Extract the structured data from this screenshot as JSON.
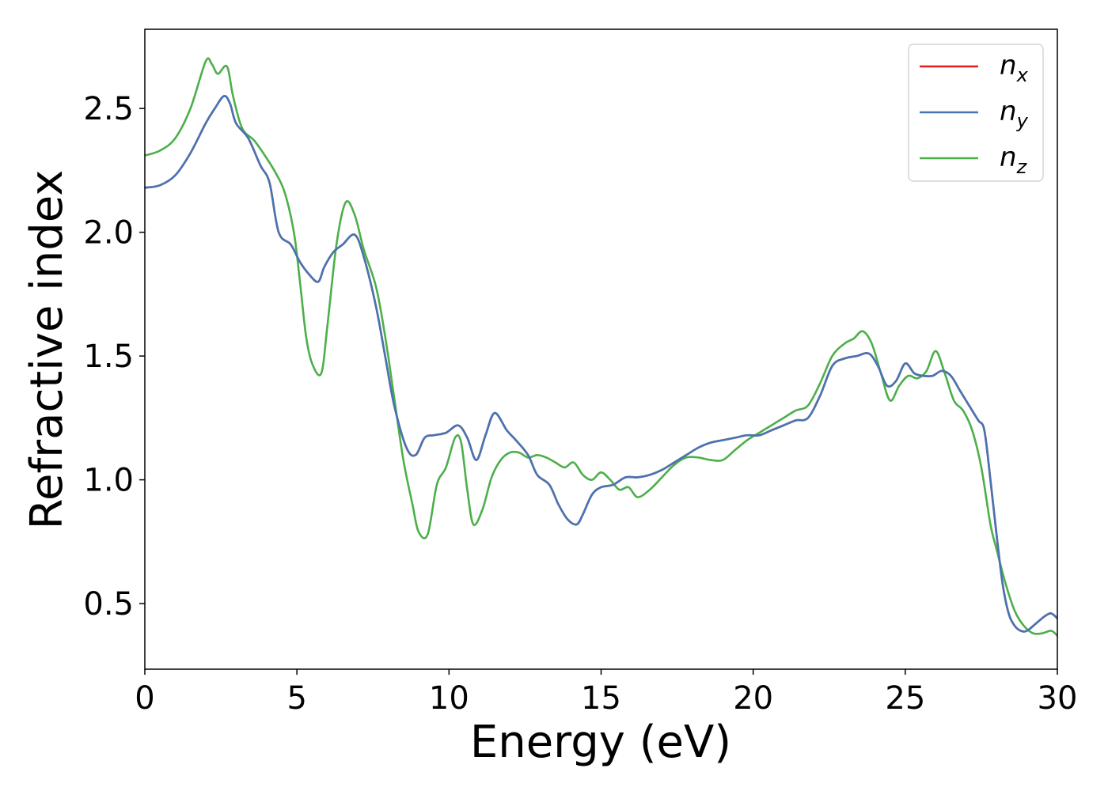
{
  "chart_data": {
    "type": "line",
    "title": "",
    "xlabel": "Energy (eV)",
    "ylabel": "Refractive index",
    "xlim": [
      0,
      30
    ],
    "ylim": [
      0.235,
      2.82
    ],
    "xticks": [
      0,
      5,
      10,
      15,
      20,
      25,
      30
    ],
    "xtick_labels": [
      "0",
      "5",
      "10",
      "15",
      "20",
      "25",
      "30"
    ],
    "yticks": [
      0.5,
      1.0,
      1.5,
      2.0,
      2.5
    ],
    "ytick_labels": [
      "0.5",
      "1.0",
      "1.5",
      "2.0",
      "2.5"
    ],
    "grid": false,
    "legend_position": "top-right",
    "series": [
      {
        "name": "n_x",
        "label_base": "n",
        "label_sub": "x",
        "color": "#e41a1c",
        "x": [
          0,
          0.5,
          1,
          1.5,
          2,
          2.3,
          2.6,
          2.8,
          3,
          3.4,
          3.8,
          4.1,
          4.4,
          4.8,
          5.1,
          5.4,
          5.7,
          5.9,
          6.2,
          6.5,
          6.9,
          7.2,
          7.6,
          7.9,
          8.2,
          8.6,
          8.9,
          9.2,
          9.5,
          9.9,
          10.3,
          10.6,
          10.9,
          11.2,
          11.5,
          11.9,
          12.2,
          12.6,
          12.9,
          13.3,
          13.6,
          13.9,
          14.2,
          14.4,
          14.7,
          15,
          15.4,
          15.8,
          16.2,
          16.6,
          17,
          17.4,
          17.8,
          18.2,
          18.6,
          19,
          19.4,
          19.8,
          20.2,
          20.6,
          21,
          21.4,
          21.8,
          22.2,
          22.6,
          23,
          23.4,
          23.8,
          24.1,
          24.4,
          24.7,
          25,
          25.3,
          25.6,
          25.9,
          26.2,
          26.5,
          26.8,
          27.1,
          27.4,
          27.6,
          27.8,
          28,
          28.2,
          28.4,
          28.6,
          28.8,
          29,
          29.3,
          29.6,
          29.8,
          30
        ],
        "y": [
          2.18,
          2.19,
          2.23,
          2.32,
          2.44,
          2.5,
          2.55,
          2.52,
          2.44,
          2.38,
          2.27,
          2.2,
          2.0,
          1.95,
          1.88,
          1.83,
          1.8,
          1.86,
          1.92,
          1.95,
          1.99,
          1.9,
          1.7,
          1.5,
          1.3,
          1.13,
          1.1,
          1.17,
          1.18,
          1.19,
          1.22,
          1.17,
          1.08,
          1.18,
          1.27,
          1.2,
          1.16,
          1.1,
          1.02,
          0.98,
          0.9,
          0.84,
          0.82,
          0.86,
          0.94,
          0.97,
          0.98,
          1.01,
          1.01,
          1.02,
          1.04,
          1.07,
          1.1,
          1.13,
          1.15,
          1.16,
          1.17,
          1.18,
          1.18,
          1.2,
          1.22,
          1.24,
          1.25,
          1.34,
          1.46,
          1.49,
          1.5,
          1.51,
          1.46,
          1.38,
          1.4,
          1.47,
          1.43,
          1.42,
          1.42,
          1.44,
          1.42,
          1.36,
          1.3,
          1.24,
          1.2,
          1.0,
          0.78,
          0.58,
          0.46,
          0.41,
          0.39,
          0.39,
          0.42,
          0.45,
          0.46,
          0.44
        ]
      },
      {
        "name": "n_y",
        "label_base": "n",
        "label_sub": "y",
        "color": "#4575b4",
        "x": [
          0,
          0.5,
          1,
          1.5,
          2,
          2.3,
          2.6,
          2.8,
          3,
          3.4,
          3.8,
          4.1,
          4.4,
          4.8,
          5.1,
          5.4,
          5.7,
          5.9,
          6.2,
          6.5,
          6.9,
          7.2,
          7.6,
          7.9,
          8.2,
          8.6,
          8.9,
          9.2,
          9.5,
          9.9,
          10.3,
          10.6,
          10.9,
          11.2,
          11.5,
          11.9,
          12.2,
          12.6,
          12.9,
          13.3,
          13.6,
          13.9,
          14.2,
          14.4,
          14.7,
          15,
          15.4,
          15.8,
          16.2,
          16.6,
          17,
          17.4,
          17.8,
          18.2,
          18.6,
          19,
          19.4,
          19.8,
          20.2,
          20.6,
          21,
          21.4,
          21.8,
          22.2,
          22.6,
          23,
          23.4,
          23.8,
          24.1,
          24.4,
          24.7,
          25,
          25.3,
          25.6,
          25.9,
          26.2,
          26.5,
          26.8,
          27.1,
          27.4,
          27.6,
          27.8,
          28,
          28.2,
          28.4,
          28.6,
          28.8,
          29,
          29.3,
          29.6,
          29.8,
          30
        ],
        "y": [
          2.18,
          2.19,
          2.23,
          2.32,
          2.44,
          2.5,
          2.55,
          2.52,
          2.44,
          2.38,
          2.27,
          2.2,
          2.0,
          1.95,
          1.88,
          1.83,
          1.8,
          1.86,
          1.92,
          1.95,
          1.99,
          1.9,
          1.7,
          1.5,
          1.3,
          1.13,
          1.1,
          1.17,
          1.18,
          1.19,
          1.22,
          1.17,
          1.08,
          1.18,
          1.27,
          1.2,
          1.16,
          1.1,
          1.02,
          0.98,
          0.9,
          0.84,
          0.82,
          0.86,
          0.94,
          0.97,
          0.98,
          1.01,
          1.01,
          1.02,
          1.04,
          1.07,
          1.1,
          1.13,
          1.15,
          1.16,
          1.17,
          1.18,
          1.18,
          1.2,
          1.22,
          1.24,
          1.25,
          1.34,
          1.46,
          1.49,
          1.5,
          1.51,
          1.46,
          1.38,
          1.4,
          1.47,
          1.43,
          1.42,
          1.42,
          1.44,
          1.42,
          1.36,
          1.3,
          1.24,
          1.2,
          1.0,
          0.78,
          0.58,
          0.46,
          0.41,
          0.39,
          0.39,
          0.42,
          0.45,
          0.46,
          0.44
        ]
      },
      {
        "name": "n_z",
        "label_base": "n",
        "label_sub": "z",
        "color": "#4daf4a",
        "x": [
          0,
          0.5,
          1,
          1.5,
          2,
          2.2,
          2.4,
          2.7,
          2.9,
          3.2,
          3.6,
          4,
          4.3,
          4.6,
          4.9,
          5.1,
          5.3,
          5.5,
          5.8,
          6,
          6.3,
          6.6,
          6.9,
          7.2,
          7.6,
          7.9,
          8.2,
          8.5,
          8.8,
          9,
          9.3,
          9.6,
          9.9,
          10.2,
          10.4,
          10.6,
          10.8,
          11.1,
          11.4,
          11.7,
          12,
          12.3,
          12.6,
          12.9,
          13.2,
          13.5,
          13.8,
          14.1,
          14.4,
          14.7,
          15,
          15.3,
          15.6,
          15.9,
          16.2,
          16.6,
          17,
          17.4,
          17.8,
          18.2,
          18.6,
          19,
          19.4,
          19.8,
          20.2,
          20.6,
          21,
          21.4,
          21.8,
          22.2,
          22.6,
          23,
          23.3,
          23.6,
          23.9,
          24.2,
          24.5,
          24.8,
          25.1,
          25.4,
          25.7,
          26,
          26.3,
          26.6,
          26.9,
          27.2,
          27.5,
          27.8,
          28,
          28.3,
          28.6,
          28.9,
          29.2,
          29.5,
          29.8,
          30
        ],
        "y": [
          2.31,
          2.33,
          2.38,
          2.5,
          2.69,
          2.68,
          2.64,
          2.67,
          2.55,
          2.42,
          2.37,
          2.3,
          2.24,
          2.16,
          2.0,
          1.8,
          1.58,
          1.47,
          1.43,
          1.62,
          1.95,
          2.12,
          2.07,
          1.93,
          1.78,
          1.58,
          1.33,
          1.08,
          0.9,
          0.79,
          0.78,
          0.98,
          1.05,
          1.17,
          1.15,
          0.96,
          0.82,
          0.88,
          1.01,
          1.08,
          1.11,
          1.11,
          1.09,
          1.1,
          1.09,
          1.07,
          1.05,
          1.07,
          1.02,
          1.0,
          1.03,
          1.0,
          0.96,
          0.97,
          0.93,
          0.96,
          1.01,
          1.06,
          1.09,
          1.09,
          1.08,
          1.08,
          1.12,
          1.16,
          1.19,
          1.22,
          1.25,
          1.28,
          1.3,
          1.39,
          1.5,
          1.55,
          1.57,
          1.6,
          1.55,
          1.43,
          1.32,
          1.38,
          1.42,
          1.41,
          1.44,
          1.52,
          1.43,
          1.32,
          1.28,
          1.2,
          1.05,
          0.82,
          0.72,
          0.58,
          0.47,
          0.41,
          0.38,
          0.38,
          0.39,
          0.37
        ]
      }
    ]
  }
}
